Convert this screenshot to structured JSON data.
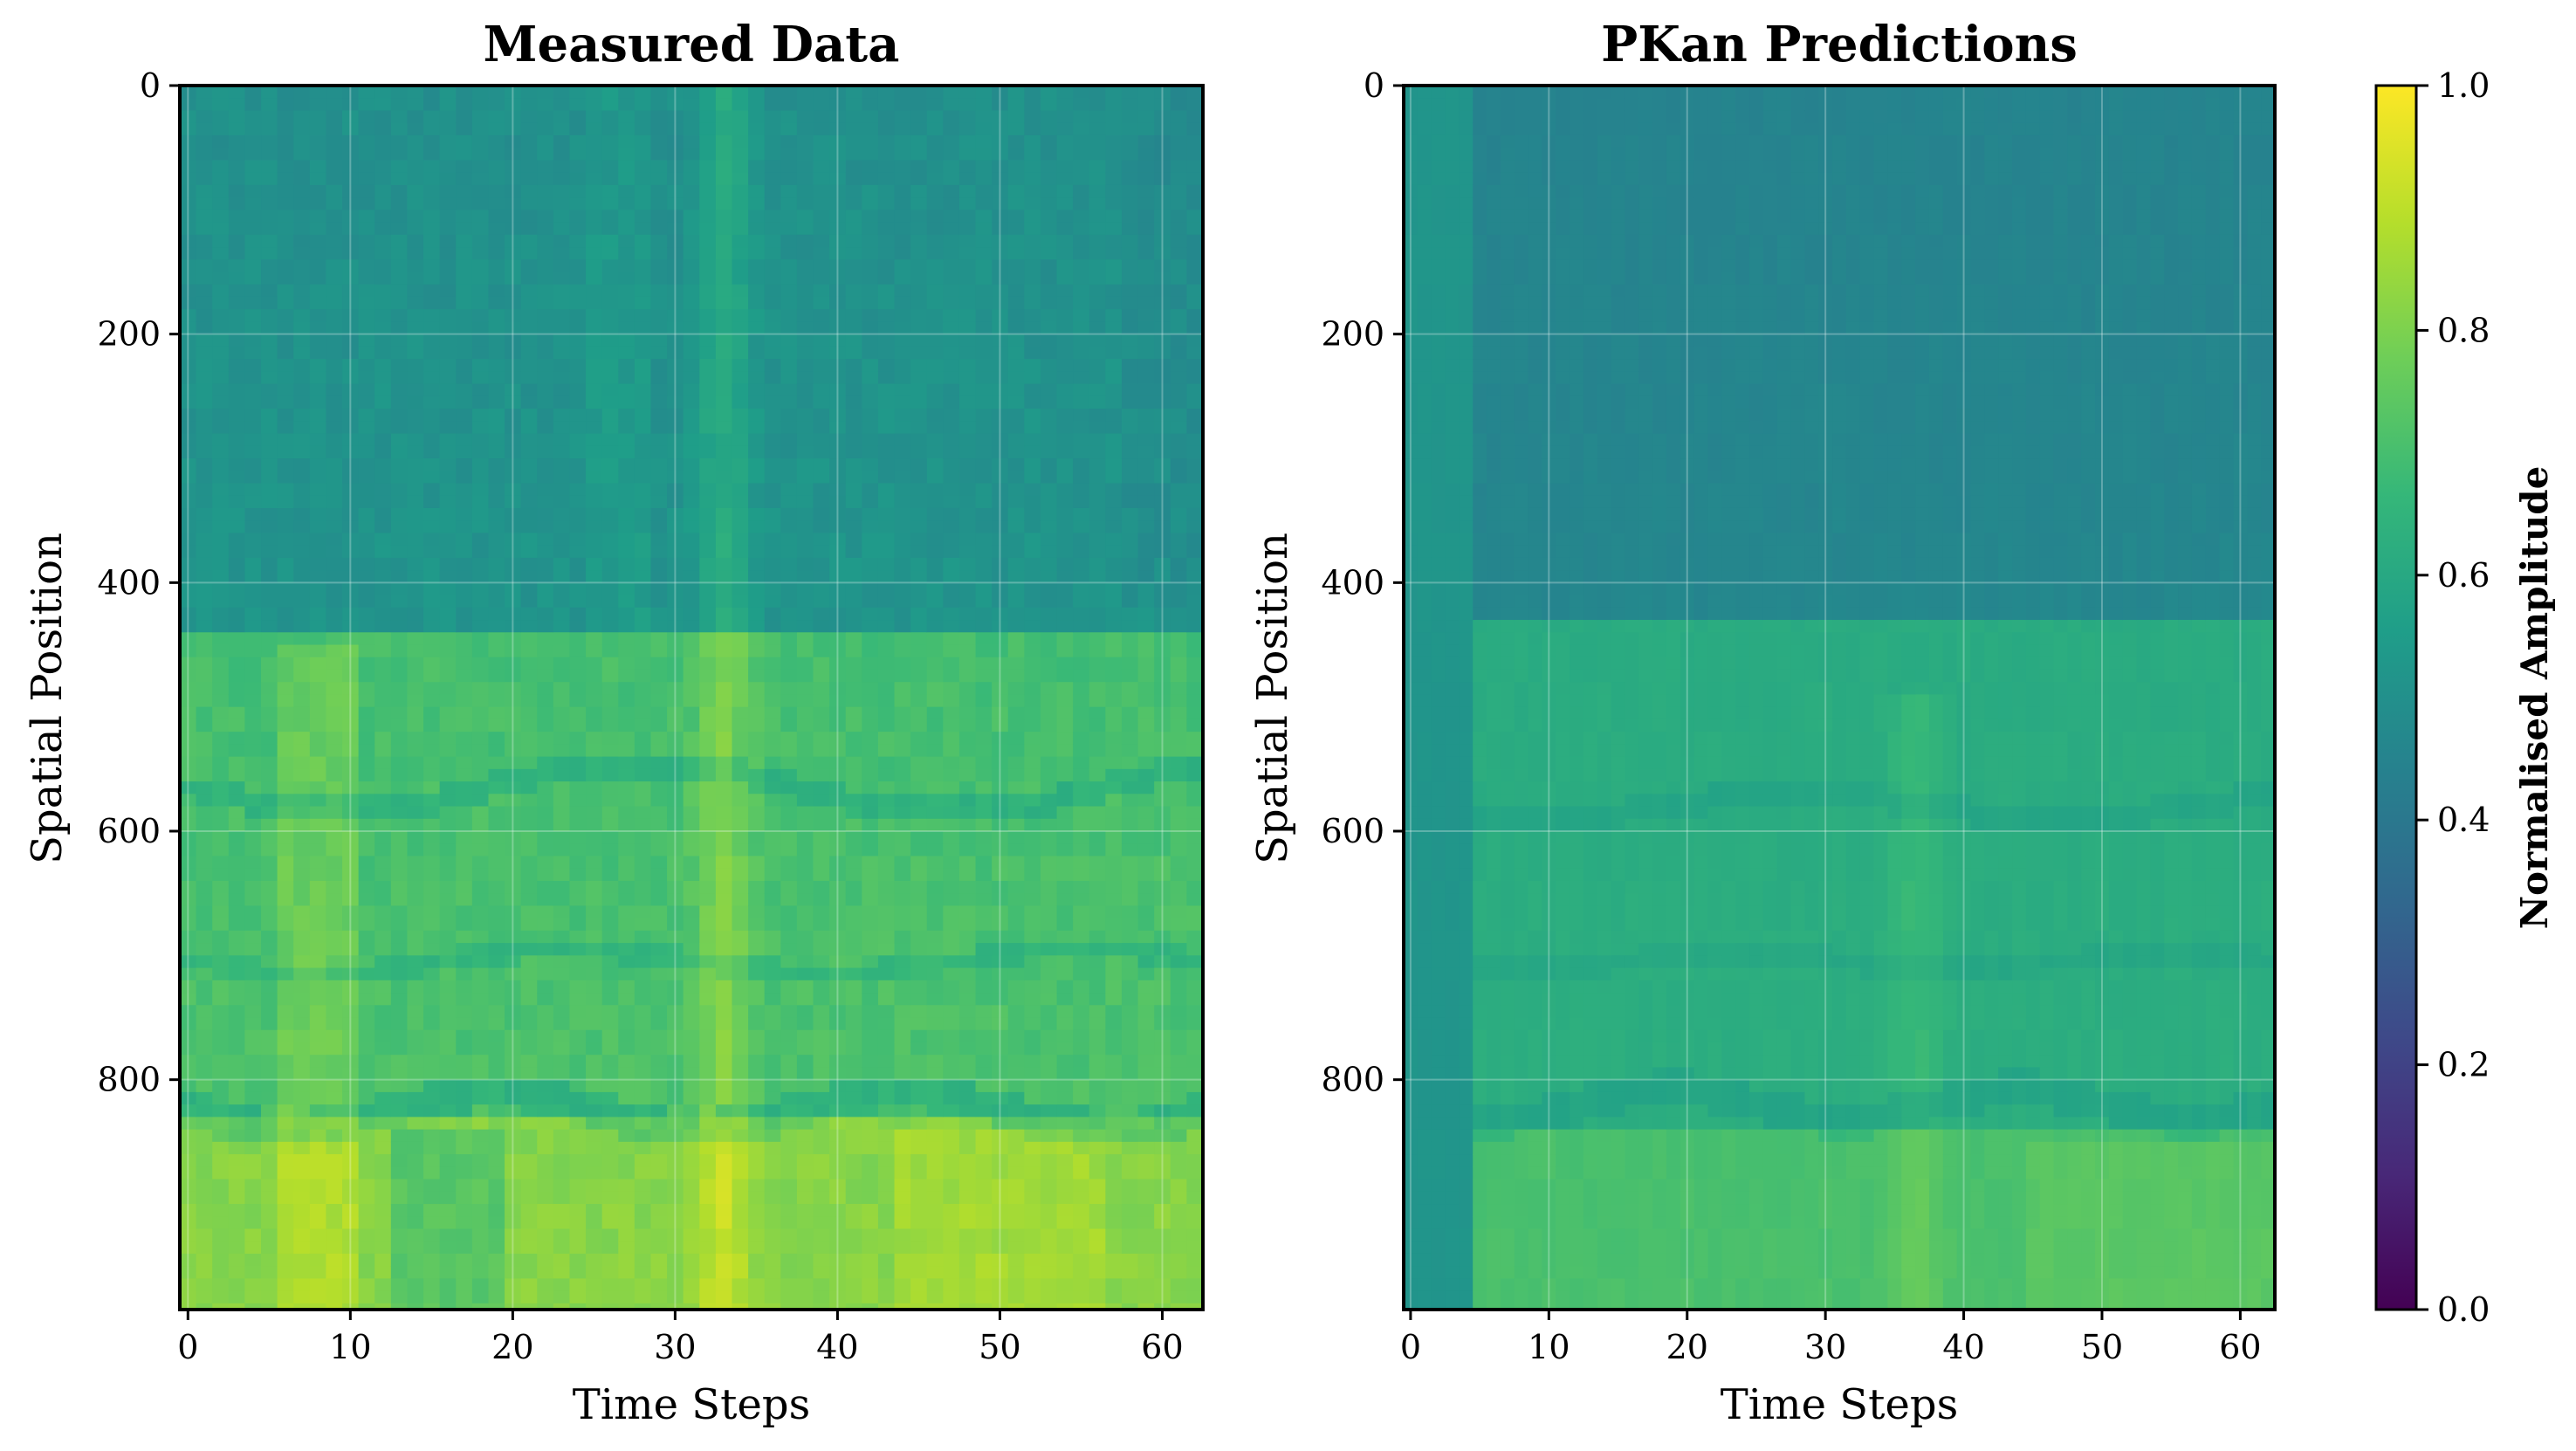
{
  "chart_data": [
    {
      "type": "heatmap",
      "title": "Measured Data",
      "xlabel": "Time Steps",
      "ylabel": "Spatial Position",
      "xlim": [
        -0.5,
        62.5
      ],
      "ylim": [
        985,
        0
      ],
      "xticks": [
        0,
        10,
        20,
        30,
        40,
        50,
        60
      ],
      "yticks": [
        0,
        200,
        400,
        600,
        800
      ],
      "grid": true,
      "colormap": "viridis",
      "value_range": [
        0.0,
        1.0
      ],
      "description_bands": [
        {
          "rows": [
            0,
            440
          ],
          "level": 0.5
        },
        {
          "rows": [
            440,
            830
          ],
          "level": 0.68
        },
        {
          "rows": [
            830,
            985
          ],
          "level": 0.78
        }
      ]
    },
    {
      "type": "heatmap",
      "title": "PKan Predictions",
      "xlabel": "Time Steps",
      "ylabel": "Spatial Position",
      "xlim": [
        -0.5,
        62.5
      ],
      "ylim": [
        985,
        0
      ],
      "xticks": [
        0,
        10,
        20,
        30,
        40,
        50,
        60
      ],
      "yticks": [
        0,
        200,
        400,
        600,
        800
      ],
      "grid": true,
      "colormap": "viridis",
      "value_range": [
        0.0,
        1.0
      ],
      "description_bands": [
        {
          "rows": [
            0,
            430
          ],
          "level": 0.45
        },
        {
          "rows": [
            430,
            840
          ],
          "level": 0.6
        },
        {
          "rows": [
            840,
            985
          ],
          "level": 0.68
        }
      ]
    }
  ],
  "colorbar": {
    "label": "Normalised Amplitude",
    "range": [
      0.0,
      1.0
    ],
    "ticks": [
      "0.0",
      "0.2",
      "0.4",
      "0.6",
      "0.8",
      "1.0"
    ],
    "colormap": "viridis"
  },
  "colors": {
    "viridis": [
      "#440154",
      "#482878",
      "#3e4989",
      "#31688e",
      "#26828e",
      "#1f9e89",
      "#35b779",
      "#6ece58",
      "#b5de2b",
      "#fde725"
    ],
    "grid": "#ffffff"
  }
}
